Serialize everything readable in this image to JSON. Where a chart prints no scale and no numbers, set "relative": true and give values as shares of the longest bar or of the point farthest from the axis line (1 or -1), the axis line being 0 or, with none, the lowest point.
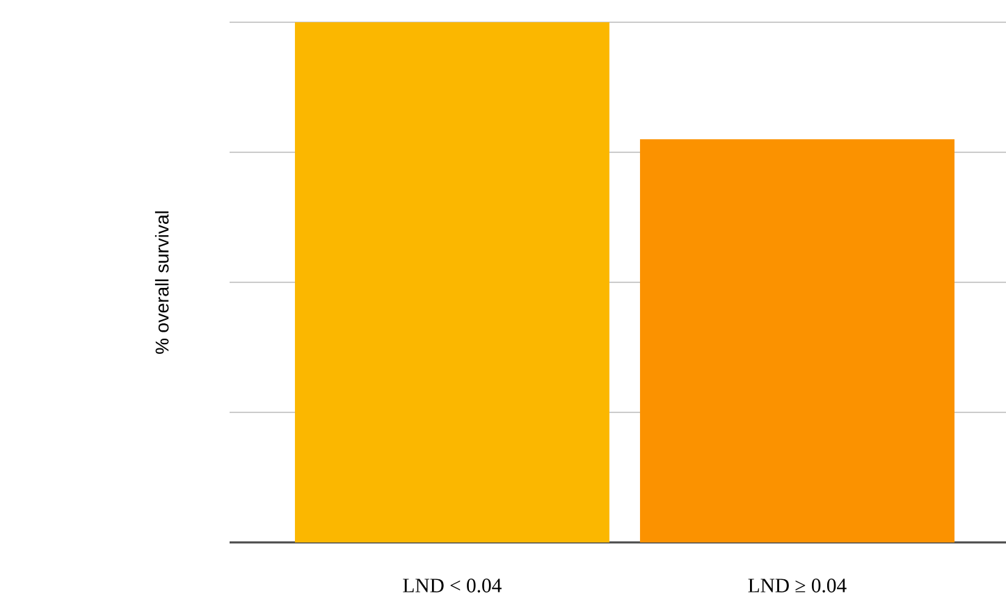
{
  "chart_data": {
    "type": "bar",
    "ylabel": "% overall survival",
    "categories": [
      "LND < 0.04",
      "LND ≥ 0.04"
    ],
    "values": [
      1,
      0.775
    ],
    "colors": [
      "#fbb700",
      "#fb9200"
    ],
    "relative": true,
    "grid": "y"
  }
}
